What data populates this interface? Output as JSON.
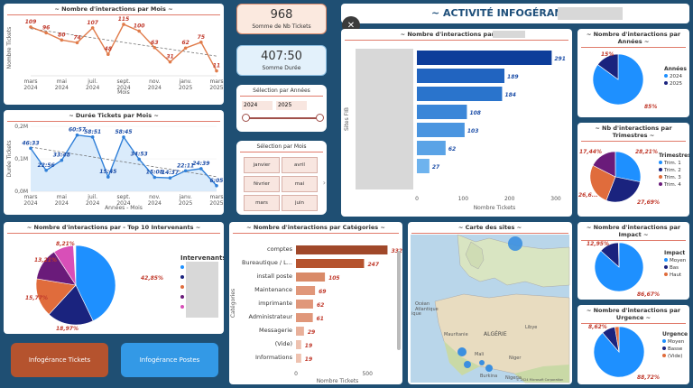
{
  "kpi": {
    "tickets_value": "968",
    "tickets_label": "Somme de Nb Tickets",
    "duree_value": "407:50",
    "duree_label": "Somme Durée"
  },
  "filters": {
    "annees_title": "Sélection par Années",
    "year_from": "2024",
    "year_to": "2025",
    "mois_title": "Sélection par Mois",
    "mois": [
      "janvier",
      "avril",
      "février",
      "mai",
      "mars",
      "juin"
    ]
  },
  "header": {
    "title": "~ ACTIVITÉ INFOGÉRANCE"
  },
  "buttons": {
    "tickets": "Infogérance Tickets",
    "postes": "Infogérance Postes"
  },
  "map": {
    "title": "~ Carte des sites ~",
    "copyright": "© 2024 Microsoft Corporation"
  },
  "chart_data": [
    {
      "type": "line",
      "title": "~ Nombre d'interactions par Mois ~",
      "xlabel": "Mois",
      "ylabel": "Nombre Tickets",
      "x_ticks": [
        "mars 2024",
        "mai 2024",
        "juil. 2024",
        "sept. 2024",
        "nov. 2024",
        "janv. 2025",
        "mars 2025"
      ],
      "values": [
        109,
        96,
        80,
        74,
        107,
        48,
        115,
        100,
        63,
        31,
        62,
        75,
        11
      ],
      "labels": [
        "109",
        "96",
        "80",
        "74",
        "107",
        "48",
        "115",
        "100",
        "63",
        "31",
        "62",
        "75",
        "11"
      ],
      "trendline": true,
      "color": "#e07b4a"
    },
    {
      "type": "area",
      "title": "~ Durée Tickets par Mois ~",
      "xlabel": "Années - Mois",
      "ylabel": "Durée Tickets",
      "y_ticks": [
        "0,0M",
        "0,1M",
        "0,2M"
      ],
      "x_ticks": [
        "mars 2024",
        "mai 2024",
        "juil. 2024",
        "sept. 2024",
        "nov. 2024",
        "janv. 2025",
        "mars 2025"
      ],
      "values": [
        46.33,
        22.56,
        33.48,
        60.57,
        58.51,
        15.45,
        58.45,
        34.53,
        15.08,
        14.37,
        22.11,
        24.39,
        6.05
      ],
      "labels": [
        "46:33",
        "22:56",
        "33:48",
        "60:57",
        "58:51",
        "15:45",
        "58:45",
        "34:53",
        "15:08",
        "14:37",
        "22:11",
        "24:39",
        "6:05"
      ],
      "trendline": true,
      "color": "#2f7fd8"
    },
    {
      "type": "bar",
      "title": "~ Nombre d'interactions par Sites",
      "xlabel": "Nombre Tickets",
      "ylabel": "Sites FIB",
      "values": [
        291,
        189,
        184,
        108,
        103,
        62,
        27
      ],
      "x_ticks": [
        "0",
        "100",
        "200",
        "300"
      ],
      "xlim": [
        0,
        300
      ]
    },
    {
      "type": "pie",
      "title": "~ Nombre d'interactions par Années ~",
      "legend_title": "Années",
      "series": [
        {
          "name": "2024",
          "pct": 85,
          "label": "85%",
          "color": "#1e90ff"
        },
        {
          "name": "2025",
          "pct": 15,
          "label": "15%",
          "color": "#1a237e"
        }
      ]
    },
    {
      "type": "pie",
      "title": "~ Nb d'interactions par Trimestres ~",
      "legend_title": "Trimestres",
      "series": [
        {
          "name": "Trim. 1",
          "pct": 28.21,
          "label": "28,21%",
          "color": "#1e90ff"
        },
        {
          "name": "Trim. 2",
          "pct": 27.69,
          "label": "27,69%",
          "color": "#1a237e"
        },
        {
          "name": "Trim. 3",
          "pct": 26.6,
          "label": "26,6...",
          "color": "#e06c3c"
        },
        {
          "name": "Trim. 4",
          "pct": 17.44,
          "label": "17,44%",
          "color": "#6a1b7a"
        }
      ]
    },
    {
      "type": "pie",
      "title": "~ Nombre d'interactions par - Top 10 Intervenants ~",
      "legend_title": "Intervenants",
      "series": [
        {
          "pct": 42.85,
          "label": "42,85%",
          "color": "#1e90ff"
        },
        {
          "pct": 18.97,
          "label": "18,97%",
          "color": "#1a237e"
        },
        {
          "pct": 15.77,
          "label": "15,77%",
          "color": "#e06c3c"
        },
        {
          "pct": 13.21,
          "label": "13,21%",
          "color": "#6a1b7a"
        },
        {
          "pct": 8.21,
          "label": "8,21%",
          "color": "#d84fb8"
        }
      ]
    },
    {
      "type": "bar",
      "title": "~ Nombre d'interactions par Catégories ~",
      "xlabel": "Nombre Tickets",
      "ylabel": "Catégories",
      "categories": [
        "comptes",
        "Bureautique / L...",
        "install poste",
        "Maintenance",
        "imprimante",
        "Administrateur",
        "Messagerie",
        "(Vide)",
        "Informations"
      ],
      "values": [
        332,
        247,
        105,
        69,
        62,
        61,
        29,
        19,
        19
      ],
      "x_ticks": [
        "0",
        "500"
      ],
      "xlim": [
        0,
        500
      ]
    },
    {
      "type": "pie",
      "title": "~ Nombre d'interactions par Impact ~",
      "legend_title": "Impact",
      "series": [
        {
          "name": "Moyen",
          "pct": 86.67,
          "label": "86,67%",
          "color": "#1e90ff"
        },
        {
          "name": "Bas",
          "pct": 12.95,
          "label": "12,95%",
          "color": "#1a237e"
        },
        {
          "name": "Haut",
          "pct": 0.38,
          "label": "",
          "color": "#e06c3c"
        }
      ]
    },
    {
      "type": "pie",
      "title": "~ Nombre d'interactions par Urgence ~",
      "legend_title": "Urgence",
      "series": [
        {
          "name": "Moyen",
          "pct": 88.72,
          "label": "88,72%",
          "color": "#1e90ff"
        },
        {
          "name": "Basse",
          "pct": 8.62,
          "label": "8,62%",
          "color": "#1a237e"
        },
        {
          "name": "(Vide)",
          "pct": 2.66,
          "label": "",
          "color": "#e06c3c"
        }
      ]
    }
  ]
}
